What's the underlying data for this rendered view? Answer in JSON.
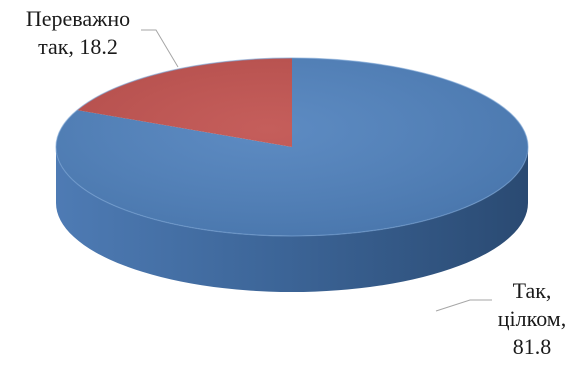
{
  "chart_data": {
    "type": "pie",
    "style": "3d",
    "title": "",
    "slices": [
      {
        "name": "Так, цілком",
        "value": 81.8,
        "color": "#4f81bd",
        "label_lines": [
          "Так,",
          "цілком,",
          "81.8"
        ]
      },
      {
        "name": "Переважно так",
        "value": 18.2,
        "color": "#c0504d",
        "label_lines": [
          "Переважно",
          "так, 18.2"
        ]
      }
    ],
    "legend": "none"
  }
}
